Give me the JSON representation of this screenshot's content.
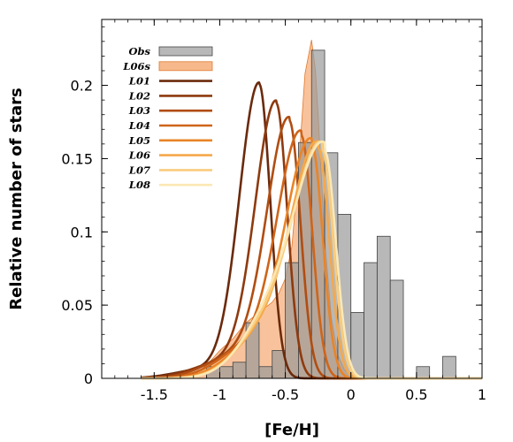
{
  "chart_data": {
    "type": "line",
    "xlabel": "[Fe/H]",
    "ylabel": "Relative number of stars",
    "xlim": [
      -1.9,
      1.0
    ],
    "ylim": [
      0,
      0.245
    ],
    "xticks": [
      {
        "value": -1.5,
        "label": "-1.5"
      },
      {
        "value": -1.0,
        "label": "-1"
      },
      {
        "value": -0.5,
        "label": "-0.5"
      },
      {
        "value": 0.0,
        "label": "0"
      },
      {
        "value": 0.5,
        "label": "0.5"
      },
      {
        "value": 1.0,
        "label": "1"
      }
    ],
    "yticks": [
      {
        "value": 0,
        "label": "0"
      },
      {
        "value": 0.05,
        "label": "0.05"
      },
      {
        "value": 0.1,
        "label": "0.1"
      },
      {
        "value": 0.15,
        "label": "0.15"
      },
      {
        "value": 0.2,
        "label": "0.2"
      }
    ],
    "legend_position": "top-left",
    "observed": {
      "name": "Obs",
      "color": "#9a9a9a",
      "bin_width": 0.1,
      "bin_starts": [
        -1.1,
        -1.0,
        -0.9,
        -0.8,
        -0.7,
        -0.6,
        -0.5,
        -0.4,
        -0.3,
        -0.2,
        -0.1,
        0.0,
        0.1,
        0.2,
        0.3,
        0.4,
        0.5,
        0.6,
        0.7
      ],
      "values": [
        0.008,
        0.008,
        0.011,
        0.038,
        0.008,
        0.019,
        0.079,
        0.161,
        0.224,
        0.154,
        0.112,
        0.045,
        0.079,
        0.097,
        0.067,
        0.0,
        0.008,
        0.0,
        0.015
      ]
    },
    "model_fill": {
      "name": "L06s",
      "fill": "#f7b98b",
      "stroke": "#e07a2f",
      "x": [
        -1.32,
        -1.2,
        -1.1,
        -1.0,
        -0.9,
        -0.8,
        -0.7,
        -0.6,
        -0.55,
        -0.5,
        -0.45,
        -0.4,
        -0.35,
        -0.3,
        -0.27,
        -0.25,
        -0.2,
        -0.15,
        -0.1,
        -0.05,
        0.0,
        0.1,
        0.25,
        0.4,
        0.6,
        1.0
      ],
      "y": [
        0.0,
        0.002,
        0.009,
        0.019,
        0.027,
        0.038,
        0.045,
        0.052,
        0.058,
        0.068,
        0.09,
        0.142,
        0.208,
        0.231,
        0.21,
        0.18,
        0.095,
        0.042,
        0.016,
        0.006,
        0.002,
        0.0005,
        0.0001,
        0.0,
        0.0,
        0.0
      ]
    },
    "series": [
      {
        "name": "L01",
        "color": "#6b2a0c",
        "peak_x": -0.7,
        "peak_y": 0.201
      },
      {
        "name": "L02",
        "color": "#8e3a0e",
        "peak_x": -0.57,
        "peak_y": 0.188
      },
      {
        "name": "L03",
        "color": "#b04d12",
        "peak_x": -0.47,
        "peak_y": 0.176
      },
      {
        "name": "L04",
        "color": "#cf6419",
        "peak_x": -0.38,
        "peak_y": 0.166
      },
      {
        "name": "L05",
        "color": "#e98426",
        "peak_x": -0.3,
        "peak_y": 0.16
      },
      {
        "name": "L06",
        "color": "#f5a84a",
        "peak_x": -0.25,
        "peak_y": 0.157
      },
      {
        "name": "L07",
        "color": "#f9cc7e",
        "peak_x": -0.22,
        "peak_y": 0.156
      },
      {
        "name": "L08",
        "color": "#fce8b4",
        "peak_x": -0.2,
        "peak_y": 0.155
      }
    ],
    "title": ""
  }
}
